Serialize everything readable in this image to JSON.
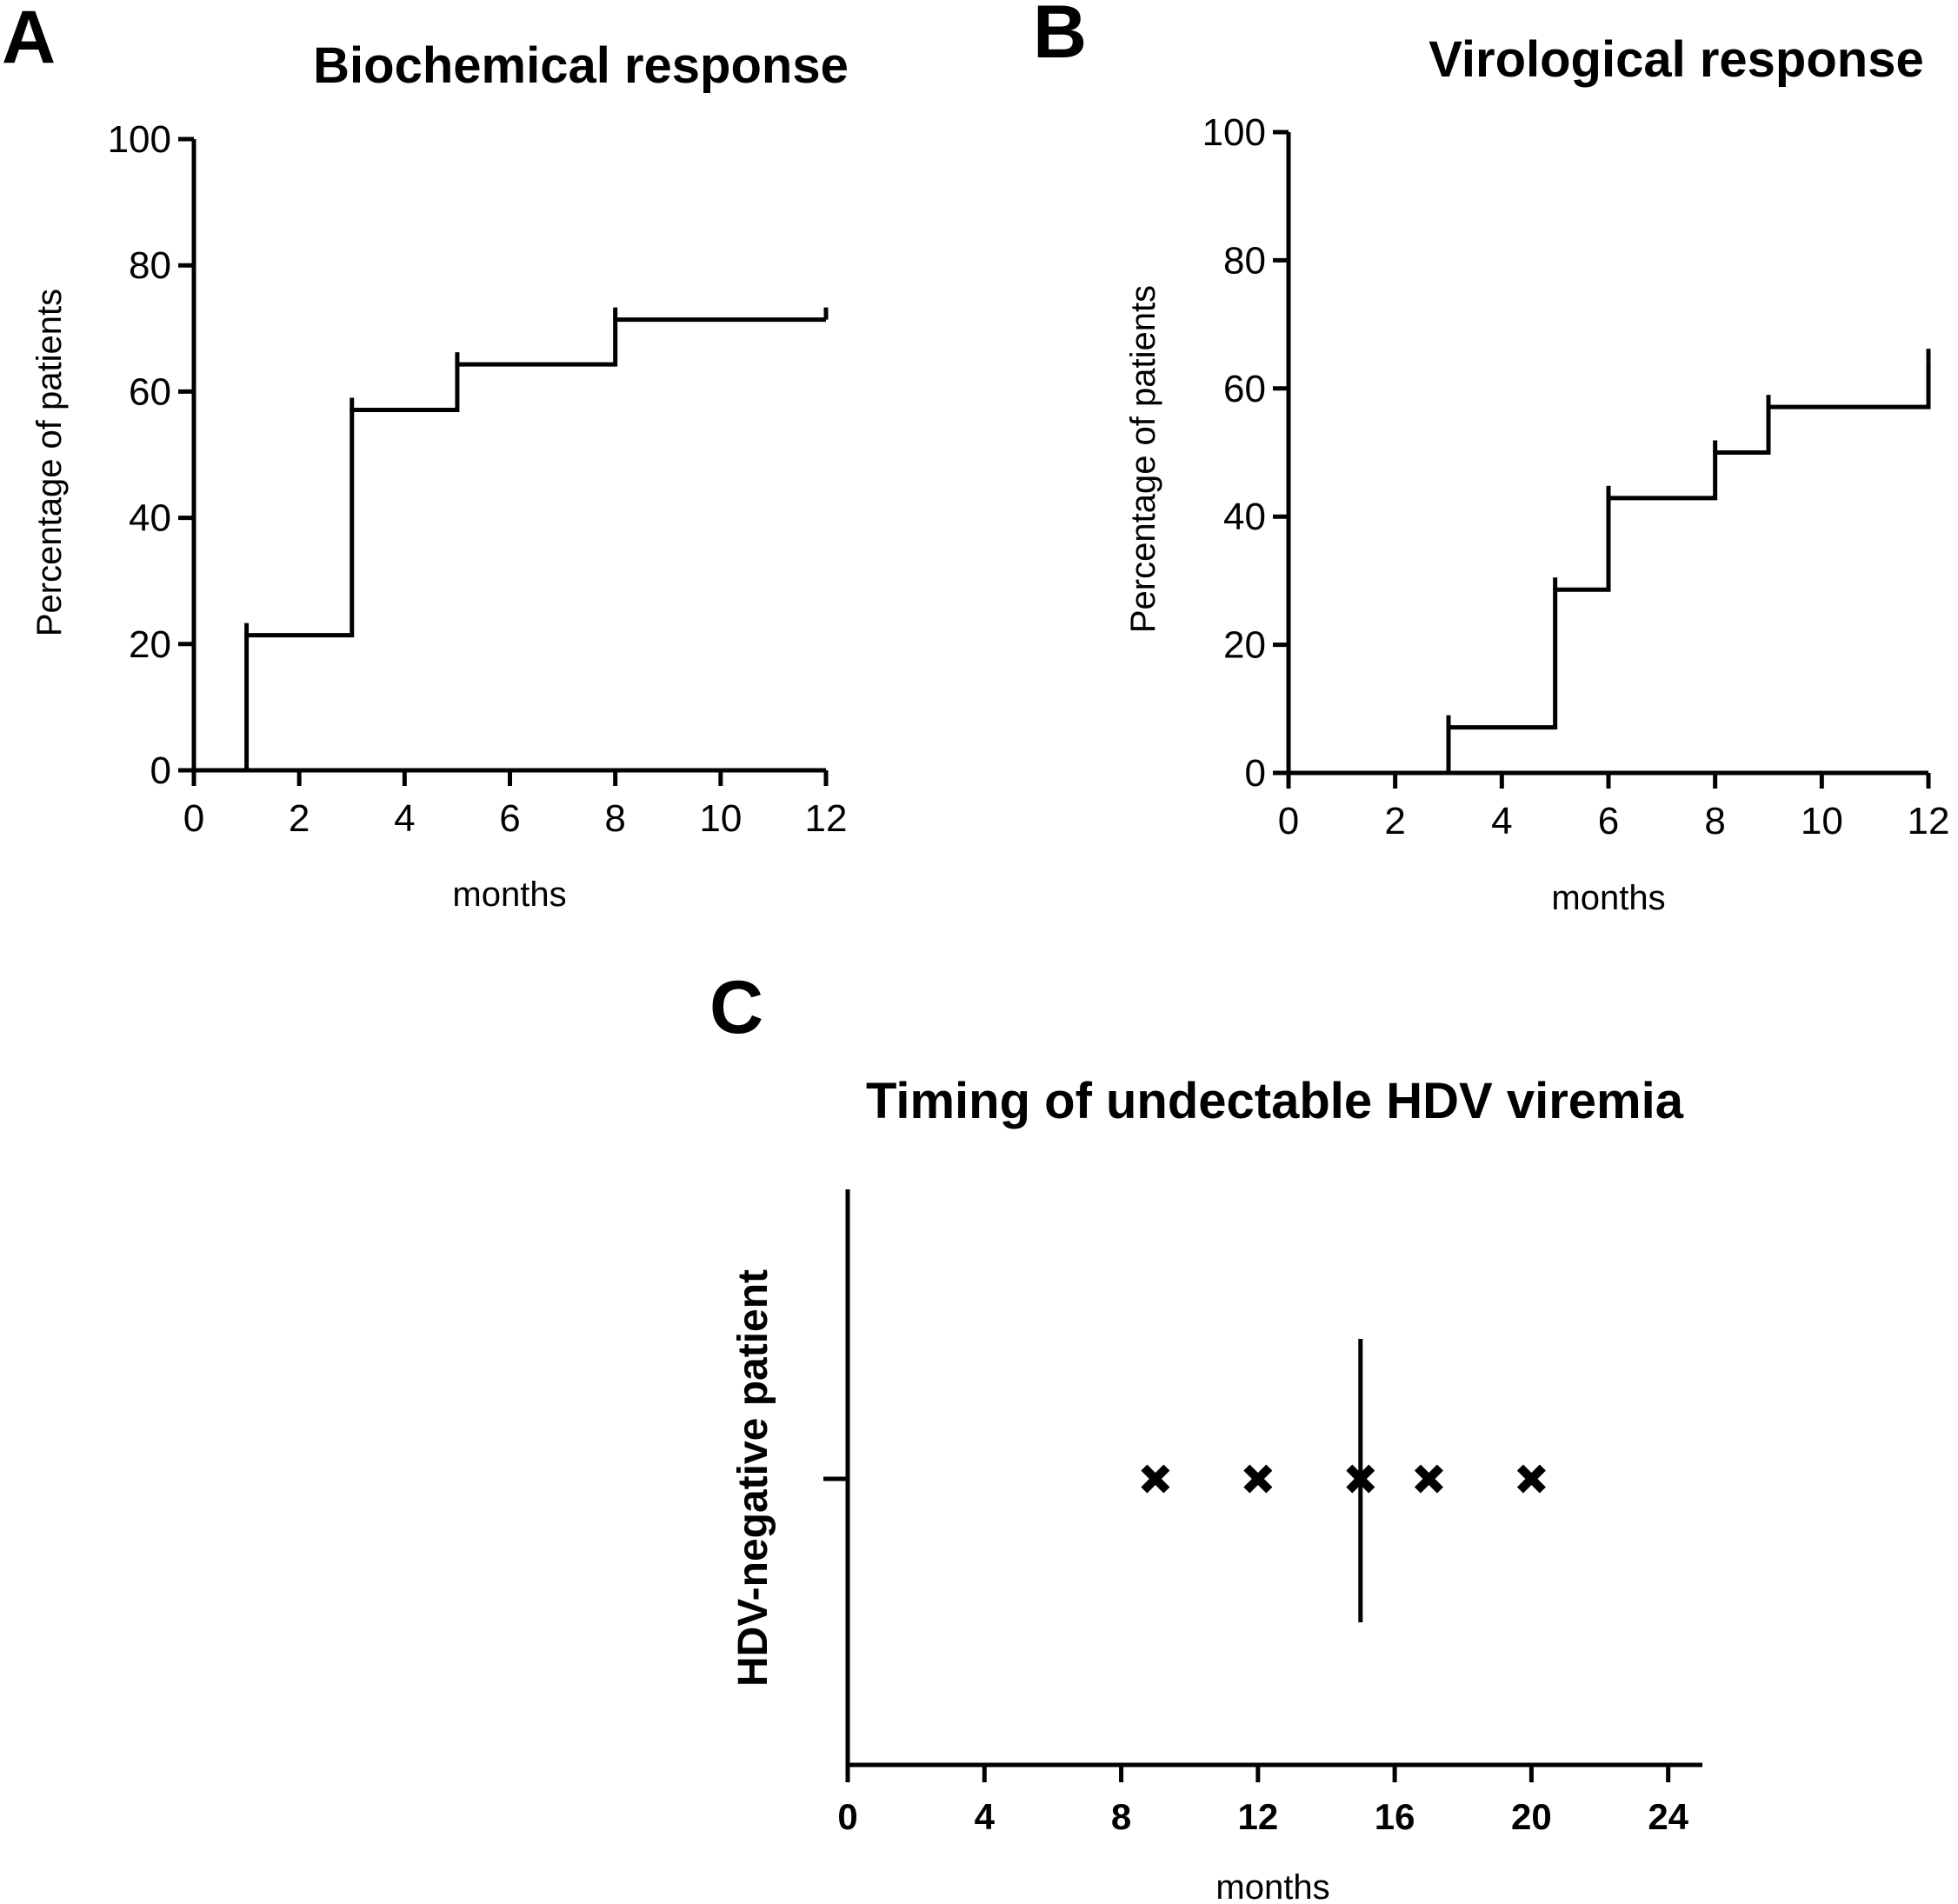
{
  "panels": {
    "a": {
      "letter": "A"
    },
    "b": {
      "letter": "B"
    },
    "c": {
      "letter": "C"
    }
  },
  "chart_data": [
    {
      "type": "line",
      "step": true,
      "title": "Biochemical response",
      "xlabel": "months",
      "ylabel": "Percentage of patients",
      "xlim": [
        0,
        12
      ],
      "ylim": [
        0,
        100
      ],
      "xticks": [
        0,
        2,
        4,
        6,
        8,
        10,
        12
      ],
      "yticks": [
        0,
        20,
        40,
        60,
        80,
        100
      ],
      "grid": false,
      "x": [
        0,
        1,
        3,
        5,
        8,
        12
      ],
      "y": [
        0,
        21.4,
        57.1,
        64.3,
        71.4,
        71.4
      ]
    },
    {
      "type": "line",
      "step": true,
      "title": "Virological response",
      "xlabel": "months",
      "ylabel": "Percentage of patients",
      "xlim": [
        0,
        12
      ],
      "ylim": [
        0,
        100
      ],
      "xticks": [
        0,
        2,
        4,
        6,
        8,
        10,
        12
      ],
      "yticks": [
        0,
        20,
        40,
        60,
        80,
        100
      ],
      "grid": false,
      "x": [
        0,
        3,
        5,
        6,
        8,
        9,
        12
      ],
      "y": [
        0,
        7.1,
        28.6,
        42.9,
        50,
        57.1,
        64.3
      ]
    },
    {
      "type": "scatter",
      "title": "Timing of undectable HDV viremia",
      "xlabel": "months",
      "ylabel": "HDV-negative patient",
      "xlim": [
        0,
        25
      ],
      "xticks": [
        0,
        4,
        8,
        12,
        16,
        20,
        24
      ],
      "grid": false,
      "marker": "x",
      "x": [
        9,
        12,
        15,
        17,
        20
      ],
      "median": 15
    }
  ]
}
